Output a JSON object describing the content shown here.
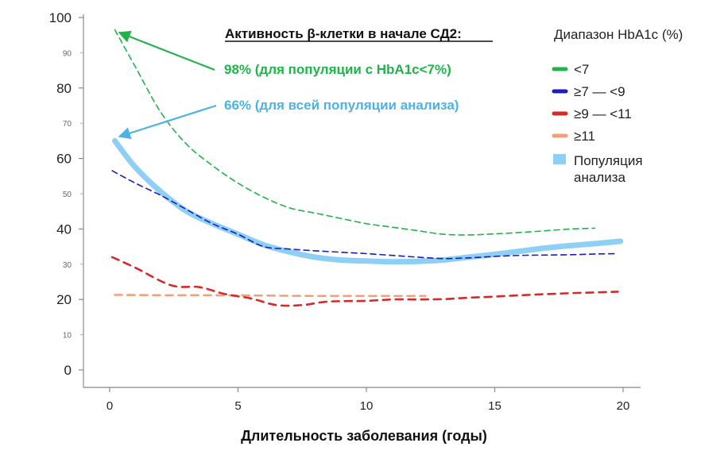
{
  "chart_data": {
    "type": "line",
    "title": "Активность β-клетки в начале СД2:",
    "xlabel": "Длительность заболевания (годы)",
    "ylabel": "",
    "xlim": [
      0,
      20
    ],
    "ylim": [
      0,
      100
    ],
    "x_ticks": [
      "0",
      "5",
      "10",
      "15",
      "20"
    ],
    "y_ticks_major": [
      "0",
      "20",
      "40",
      "60",
      "80",
      "100"
    ],
    "y_ticks_minor": [
      "10",
      "30",
      "50",
      "70",
      "90"
    ],
    "legend_title": "Диапазон HbA1c (%)",
    "series": [
      {
        "name": "<7",
        "color": "#22b24c",
        "style": "dashed",
        "points": [
          [
            0.2,
            96.5
          ],
          [
            1,
            86
          ],
          [
            2,
            73
          ],
          [
            3,
            64
          ],
          [
            4,
            58
          ],
          [
            5,
            53
          ],
          [
            6,
            49
          ],
          [
            7,
            46
          ],
          [
            8,
            44.5
          ],
          [
            9,
            43
          ],
          [
            10,
            41.5
          ],
          [
            11,
            40.5
          ],
          [
            12,
            39.5
          ],
          [
            13,
            38.5
          ],
          [
            14,
            38.3
          ],
          [
            15,
            38.6
          ],
          [
            16,
            39
          ],
          [
            17,
            39.5
          ],
          [
            18,
            40
          ],
          [
            18.9,
            40.2
          ]
        ]
      },
      {
        "name": "≥7 — <9",
        "color": "#1c1cbf",
        "style": "dashed",
        "points": [
          [
            0.1,
            56.5
          ],
          [
            1,
            53
          ],
          [
            2,
            49.5
          ],
          [
            3,
            45.5
          ],
          [
            4,
            41.5
          ],
          [
            5,
            38.5
          ],
          [
            6,
            35
          ],
          [
            7,
            34.3
          ],
          [
            8,
            33.8
          ],
          [
            9,
            33.4
          ],
          [
            10,
            33
          ],
          [
            11,
            32.5
          ],
          [
            12,
            32
          ],
          [
            13,
            31.6
          ],
          [
            14,
            31.8
          ],
          [
            15,
            32.2
          ],
          [
            16,
            32.5
          ],
          [
            17,
            32.6
          ],
          [
            18,
            32.7
          ],
          [
            19,
            32.9
          ],
          [
            19.8,
            33
          ]
        ]
      },
      {
        "name": "≥9 — <11",
        "color": "#d42a2a",
        "style": "dashed",
        "points": [
          [
            0.1,
            32
          ],
          [
            1,
            29
          ],
          [
            2.4,
            24
          ],
          [
            3.5,
            23.5
          ],
          [
            4.5,
            21.5
          ],
          [
            5.5,
            20.3
          ],
          [
            6.5,
            18.4
          ],
          [
            7.5,
            18.4
          ],
          [
            8.5,
            19.4
          ],
          [
            10,
            19.6
          ],
          [
            11,
            20
          ],
          [
            12,
            20
          ],
          [
            13,
            20.1
          ],
          [
            14,
            20.5
          ],
          [
            15,
            20.8
          ],
          [
            16,
            21.2
          ],
          [
            17,
            21.5
          ],
          [
            18,
            21.8
          ],
          [
            19,
            22
          ],
          [
            19.8,
            22.2
          ]
        ]
      },
      {
        "name": "≥11",
        "color": "#f0a07a",
        "style": "dashed",
        "points": [
          [
            0.2,
            21.3
          ],
          [
            2,
            21.2
          ],
          [
            4,
            21.2
          ],
          [
            6,
            21.1
          ],
          [
            8,
            21
          ],
          [
            10,
            21
          ],
          [
            12,
            21
          ],
          [
            12.3,
            21
          ]
        ]
      },
      {
        "name": "Популяция анализа",
        "legend_lines": [
          "Популяция",
          "анализа"
        ],
        "color": "#8dcff5",
        "style": "thick",
        "points": [
          [
            0.2,
            65
          ],
          [
            1,
            57.5
          ],
          [
            2,
            50.5
          ],
          [
            3,
            45
          ],
          [
            4,
            41.5
          ],
          [
            5,
            38.5
          ],
          [
            6,
            35.5
          ],
          [
            7,
            33.5
          ],
          [
            8,
            32
          ],
          [
            9,
            31.2
          ],
          [
            10,
            30.9
          ],
          [
            11,
            30.7
          ],
          [
            12,
            30.8
          ],
          [
            13,
            31.2
          ],
          [
            14,
            32
          ],
          [
            15,
            32.8
          ],
          [
            16,
            33.7
          ],
          [
            17,
            34.6
          ],
          [
            18,
            35.3
          ],
          [
            19,
            35.9
          ],
          [
            19.9,
            36.5
          ]
        ]
      }
    ],
    "annotations": [
      {
        "text": "98% (для популяции с HbA1c<7%)",
        "color": "#22b24c",
        "target": [
          0.2,
          96.5
        ]
      },
      {
        "text": "66% (для всей популяции анализа)",
        "color": "#4bb4e6",
        "target": [
          0.2,
          65
        ]
      }
    ]
  }
}
